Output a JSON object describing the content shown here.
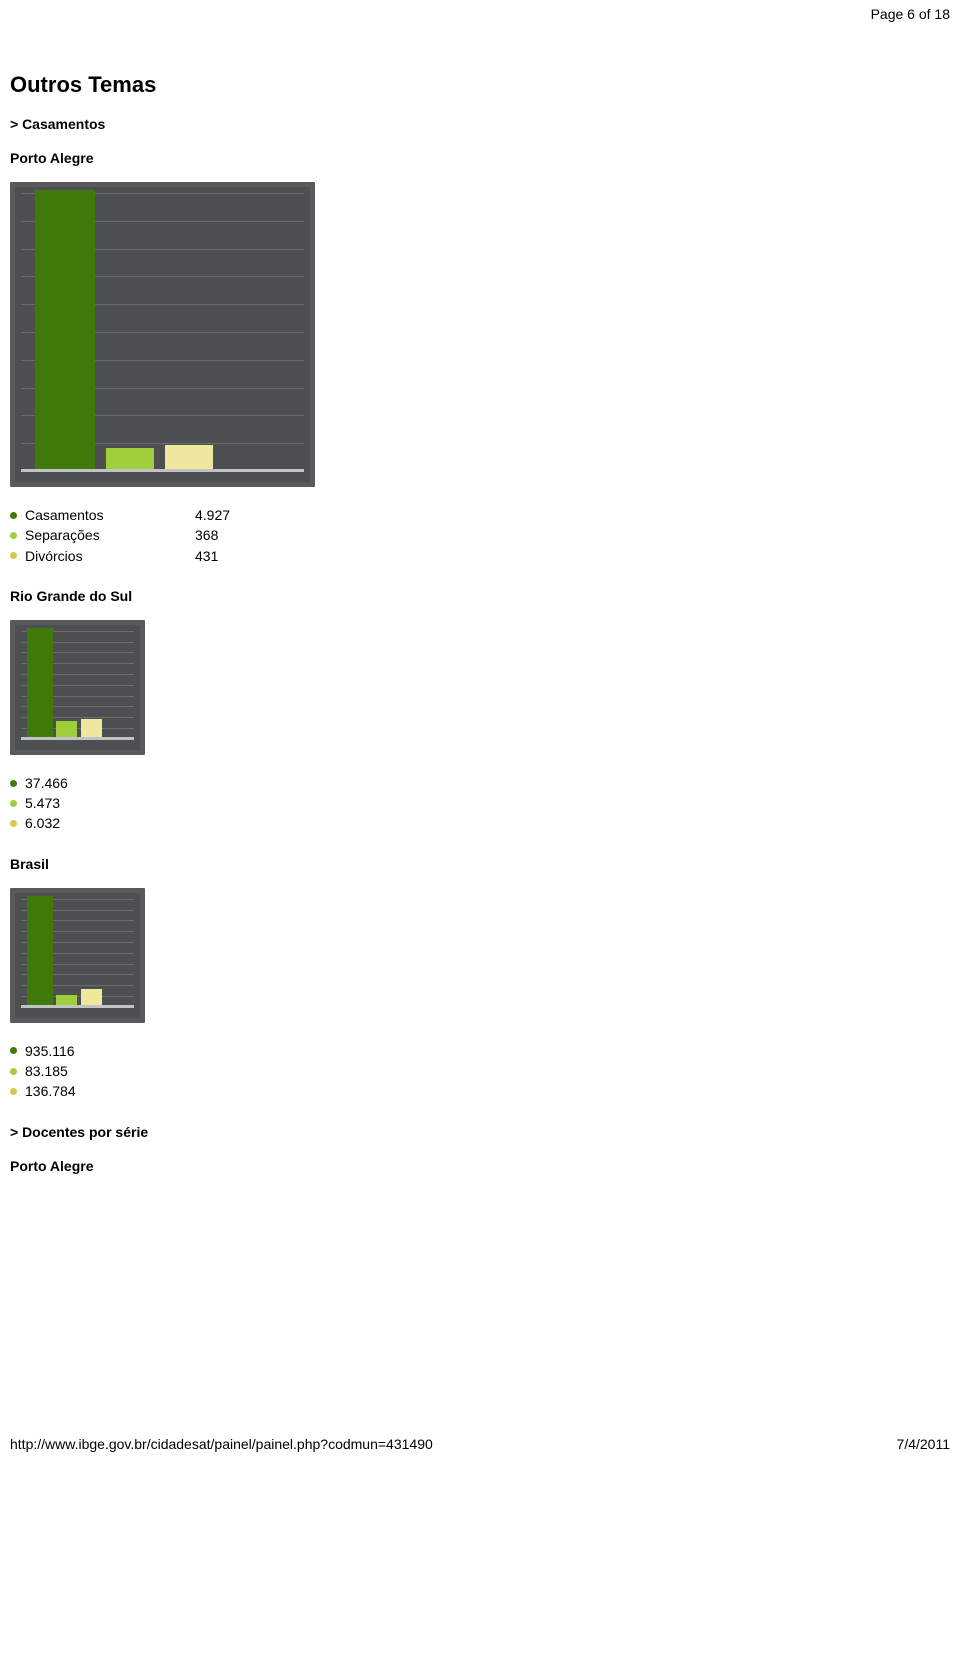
{
  "page_indicator": "Page 6 of 18",
  "section_title": "Outros Temas",
  "subsection_1": "> Casamentos",
  "subsection_2": "> Docentes por série",
  "footer_url": "http://www.ibge.gov.br/cidadesat/painel/painel.php?codmun=431490",
  "footer_date": "7/4/2011",
  "palette": {
    "bar1": "#3f7a0a",
    "bar2": "#9fce3a",
    "bar3": "#f0e79e",
    "bullet1": "#3f7a0a",
    "bullet2": "#9fce3a",
    "bullet3": "#d8c84a",
    "chart_bg": "#4e4f50",
    "chart_border": "#595a5b",
    "grid": "#6b6c6d",
    "baseline": "#c2c3c4"
  },
  "regions": {
    "porto_alegre": {
      "title": "Porto Alegre",
      "chart": {
        "type": "bar",
        "size": "large",
        "gridlines": 11,
        "max": 4927,
        "bars": [
          {
            "label": "Casamentos",
            "value": 4927,
            "color": "#3f7a0a",
            "width_pct": 21,
            "left_pct": 5
          },
          {
            "label": "Separações",
            "value": 368,
            "color": "#9fce3a",
            "width_pct": 17,
            "left_pct": 30
          },
          {
            "label": "Divórcios",
            "value": 431,
            "color": "#f0e79e",
            "width_pct": 17,
            "left_pct": 51
          }
        ]
      },
      "legend": [
        {
          "bullet": "#3f7a0a",
          "label": "Casamentos",
          "value": "4.927"
        },
        {
          "bullet": "#9fce3a",
          "label": "Separações",
          "value": "368"
        },
        {
          "bullet": "#d8c84a",
          "label": "Divórcios",
          "value": "431"
        }
      ]
    },
    "rio_grande": {
      "title": "Rio Grande do Sul",
      "chart": {
        "type": "bar",
        "size": "small",
        "gridlines": 11,
        "max": 37466,
        "bars": [
          {
            "value": 37466,
            "color": "#3f7a0a",
            "width_pct": 23,
            "left_pct": 5
          },
          {
            "value": 5473,
            "color": "#9fce3a",
            "width_pct": 19,
            "left_pct": 31
          },
          {
            "value": 6032,
            "color": "#f0e79e",
            "width_pct": 19,
            "left_pct": 53
          }
        ]
      },
      "legend": [
        {
          "bullet": "#3f7a0a",
          "value": "37.466"
        },
        {
          "bullet": "#9fce3a",
          "value": "5.473"
        },
        {
          "bullet": "#d8c84a",
          "value": "6.032"
        }
      ]
    },
    "brasil": {
      "title": "Brasil",
      "chart": {
        "type": "bar",
        "size": "small",
        "gridlines": 11,
        "max": 935116,
        "bars": [
          {
            "value": 935116,
            "color": "#3f7a0a",
            "width_pct": 23,
            "left_pct": 5
          },
          {
            "value": 83185,
            "color": "#9fce3a",
            "width_pct": 19,
            "left_pct": 31
          },
          {
            "value": 136784,
            "color": "#f0e79e",
            "width_pct": 19,
            "left_pct": 53
          }
        ]
      },
      "legend": [
        {
          "bullet": "#3f7a0a",
          "value": "935.116"
        },
        {
          "bullet": "#9fce3a",
          "value": "83.185"
        },
        {
          "bullet": "#d8c84a",
          "value": "136.784"
        }
      ]
    },
    "porto_alegre_2": {
      "title": "Porto Alegre"
    }
  }
}
